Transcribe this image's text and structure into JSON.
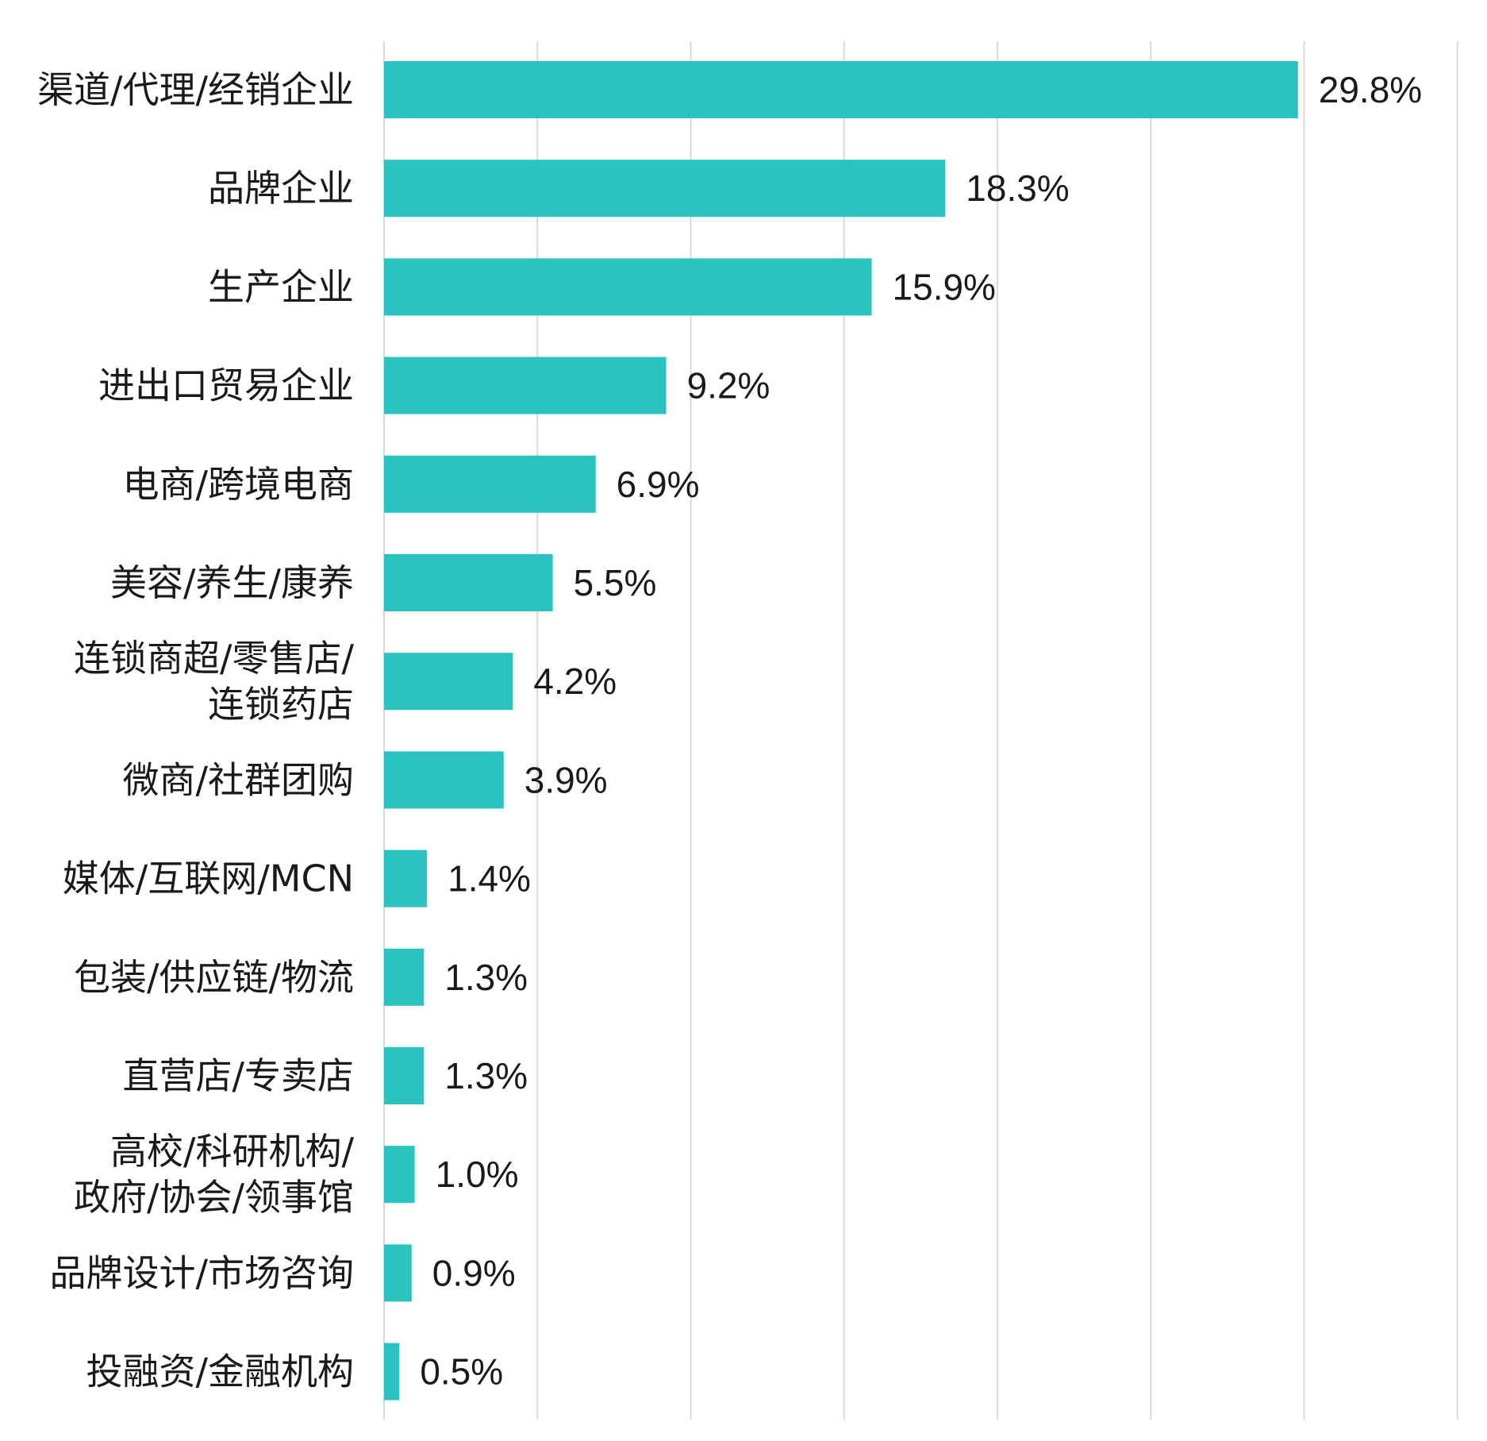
{
  "chart_data": {
    "type": "bar",
    "orientation": "horizontal",
    "categories": [
      [
        "渠道/代理/经销企业"
      ],
      [
        "品牌企业"
      ],
      [
        "生产企业"
      ],
      [
        "进出口贸易企业"
      ],
      [
        "电商/跨境电商"
      ],
      [
        "美容/养生/康养"
      ],
      [
        "连锁商超/零售店/",
        "连锁药店"
      ],
      [
        "微商/社群团购"
      ],
      [
        "媒体/互联网/MCN"
      ],
      [
        "包装/供应链/物流"
      ],
      [
        "直营店/专卖店"
      ],
      [
        "高校/科研机构/",
        "政府/协会/领事馆"
      ],
      [
        "品牌设计/市场咨询"
      ],
      [
        "投融资/金融机构"
      ]
    ],
    "values": [
      29.8,
      18.3,
      15.9,
      9.2,
      6.9,
      5.5,
      4.2,
      3.9,
      1.4,
      1.3,
      1.3,
      1.0,
      0.9,
      0.5
    ],
    "value_labels": [
      "29.8%",
      "18.3%",
      "15.9%",
      "9.2%",
      "6.9%",
      "5.5%",
      "4.2%",
      "3.9%",
      "1.4%",
      "1.3%",
      "1.3%",
      "1.0%",
      "0.9%",
      "0.5%"
    ],
    "xlim": [
      0,
      35
    ],
    "grid_step": 5,
    "grid": true,
    "legend": "none",
    "bar_color": "#2ac3bf",
    "grid_color": "#d9d9d9"
  }
}
